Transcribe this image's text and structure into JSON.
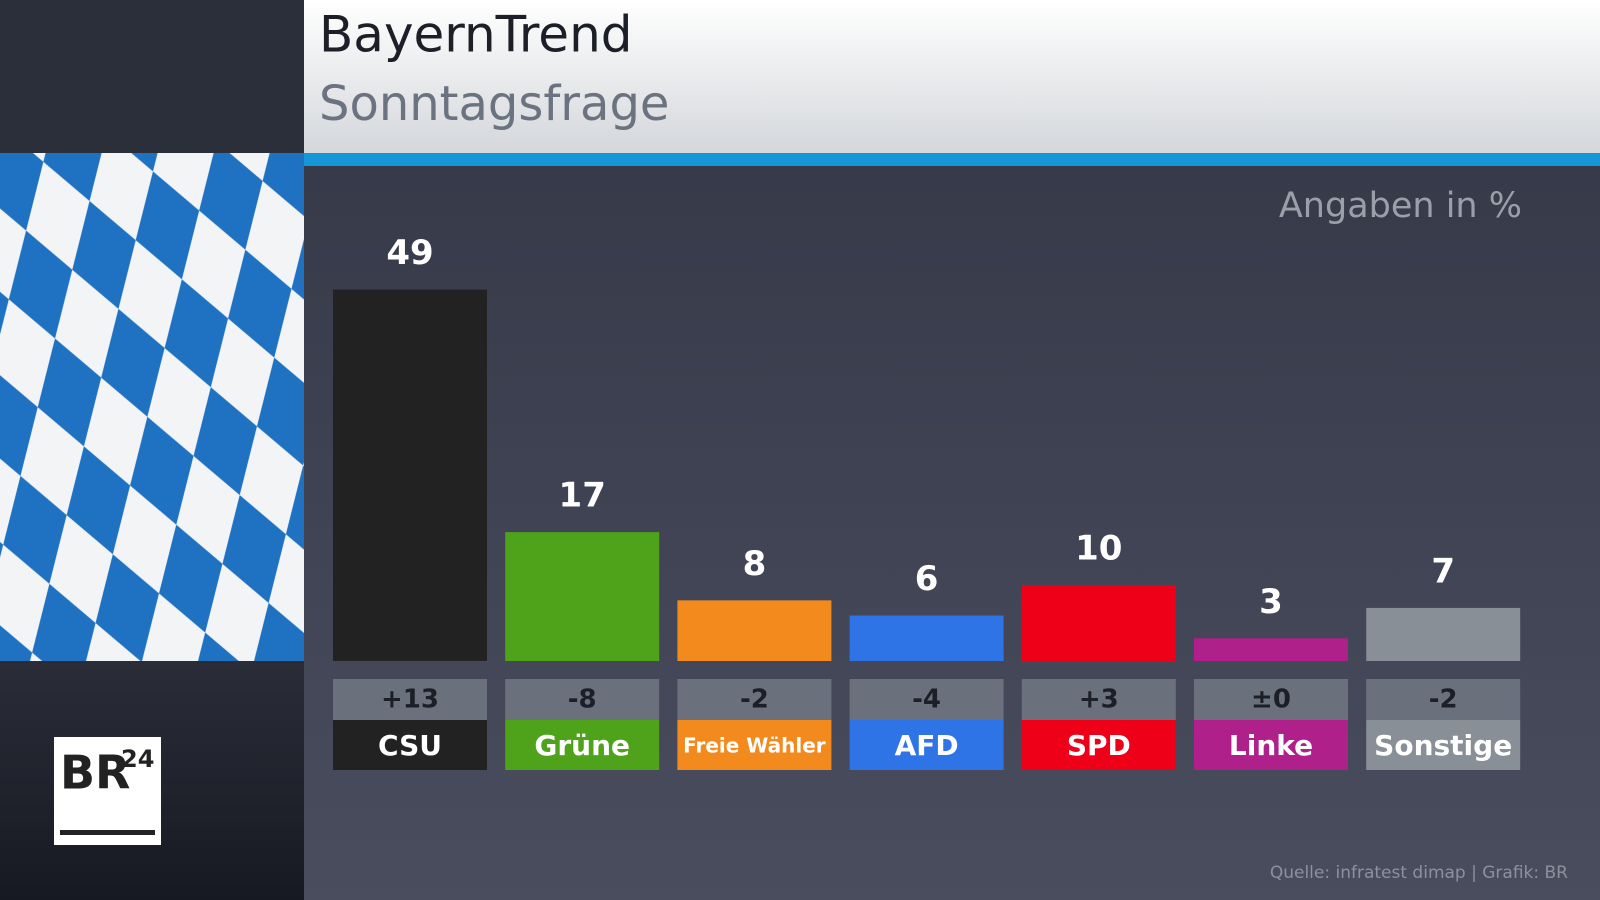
{
  "chart_data": {
    "type": "bar",
    "title": "BayernTrend",
    "subtitle": "Sonntagsfrage",
    "unit_note": "Angaben in %",
    "categories": [
      "CSU",
      "Grüne",
      "Freie Wähler",
      "AFD",
      "SPD",
      "Linke",
      "Sonstige"
    ],
    "values": [
      49,
      17,
      8,
      6,
      10,
      3,
      7
    ],
    "colors": [
      "#222222",
      "#4fa31a",
      "#f28a1e",
      "#2f74e6",
      "#ee0018",
      "#b0208a",
      "#888f96"
    ],
    "changes": [
      "+13",
      "-8",
      "-2",
      "-4",
      "+3",
      "±0",
      "-2"
    ],
    "source": "Quelle: infratest dimap | Grafik: BR",
    "logo": {
      "main": "BR",
      "sup": "24"
    }
  }
}
